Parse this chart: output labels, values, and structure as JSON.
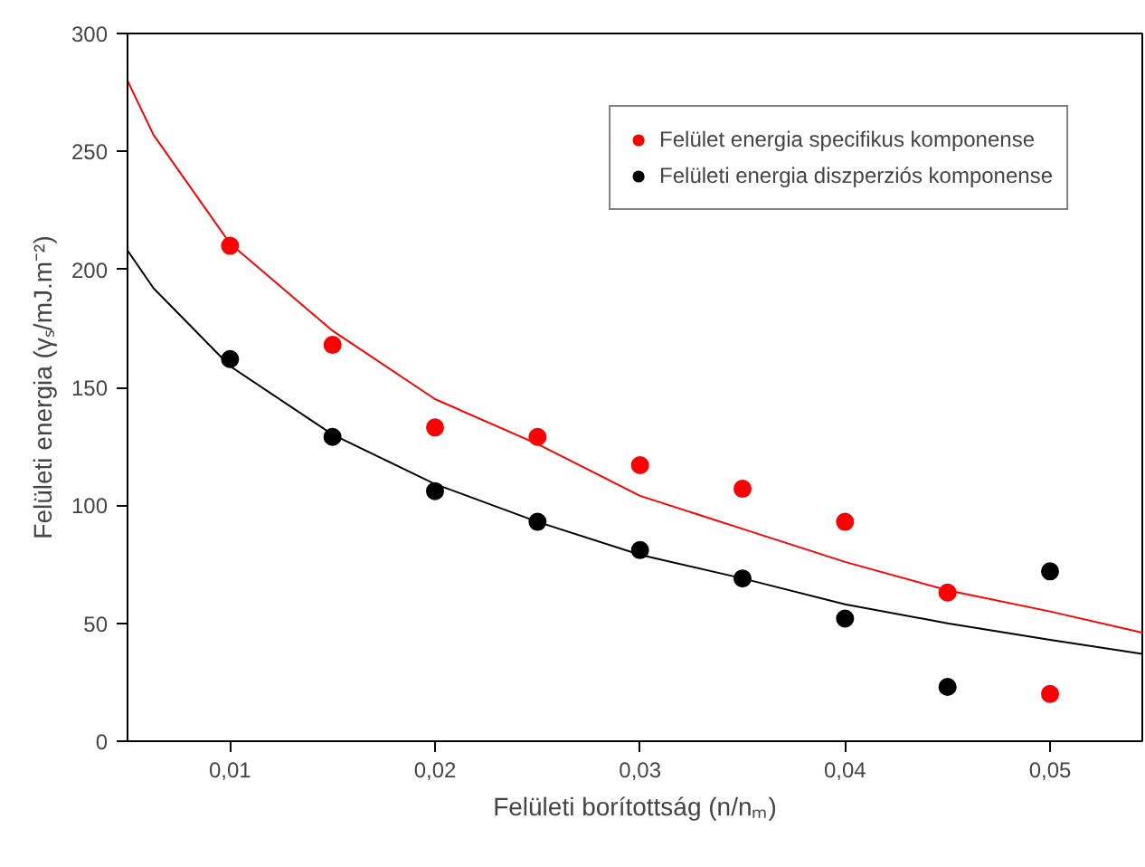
{
  "chart_data": {
    "type": "scatter",
    "xlabel": "Felületi borítottság (n/nₘ)",
    "ylabel": "Felületi energia (γₛ/mJ.m⁻²)",
    "xlim": [
      0.005,
      0.0545
    ],
    "ylim": [
      0,
      300
    ],
    "xticks": [
      {
        "value": 0.01,
        "label": "0,01"
      },
      {
        "value": 0.02,
        "label": "0,02"
      },
      {
        "value": 0.03,
        "label": "0,03"
      },
      {
        "value": 0.04,
        "label": "0,04"
      },
      {
        "value": 0.05,
        "label": "0,05"
      }
    ],
    "yticks": [
      0,
      50,
      100,
      150,
      200,
      250,
      300
    ],
    "grid": false,
    "legend": "top right",
    "series": [
      {
        "name": "Felület energia specifikus komponense",
        "color": "#ff0000",
        "marker": "circle",
        "x": [
          0.01,
          0.015,
          0.02,
          0.025,
          0.03,
          0.035,
          0.04,
          0.045,
          0.05
        ],
        "values": [
          210,
          168,
          133,
          129,
          117,
          107,
          93,
          63,
          20
        ]
      },
      {
        "name": "Felületi energia diszperziós komponense",
        "color": "#000000",
        "marker": "circle",
        "x": [
          0.01,
          0.015,
          0.02,
          0.025,
          0.03,
          0.035,
          0.04,
          0.045,
          0.05
        ],
        "values": [
          162,
          129,
          106,
          93,
          81,
          69,
          52,
          23,
          72
        ]
      },
      {
        "color": "#ff0000",
        "type": "line",
        "x": [
          0.005,
          0.00627,
          0.01,
          0.015,
          0.02,
          0.025,
          0.03,
          0.035,
          0.04,
          0.045,
          0.05,
          0.0545
        ],
        "values": [
          280,
          257,
          211,
          174,
          145,
          126,
          104,
          90,
          76,
          64,
          55,
          46
        ]
      },
      {
        "color": "#000000",
        "type": "line",
        "x": [
          0.005,
          0.00627,
          0.01,
          0.015,
          0.02,
          0.025,
          0.03,
          0.035,
          0.04,
          0.045,
          0.05,
          0.0545
        ],
        "values": [
          208,
          192,
          159,
          130,
          109,
          93,
          79,
          69,
          58,
          50,
          43,
          37
        ]
      }
    ]
  }
}
